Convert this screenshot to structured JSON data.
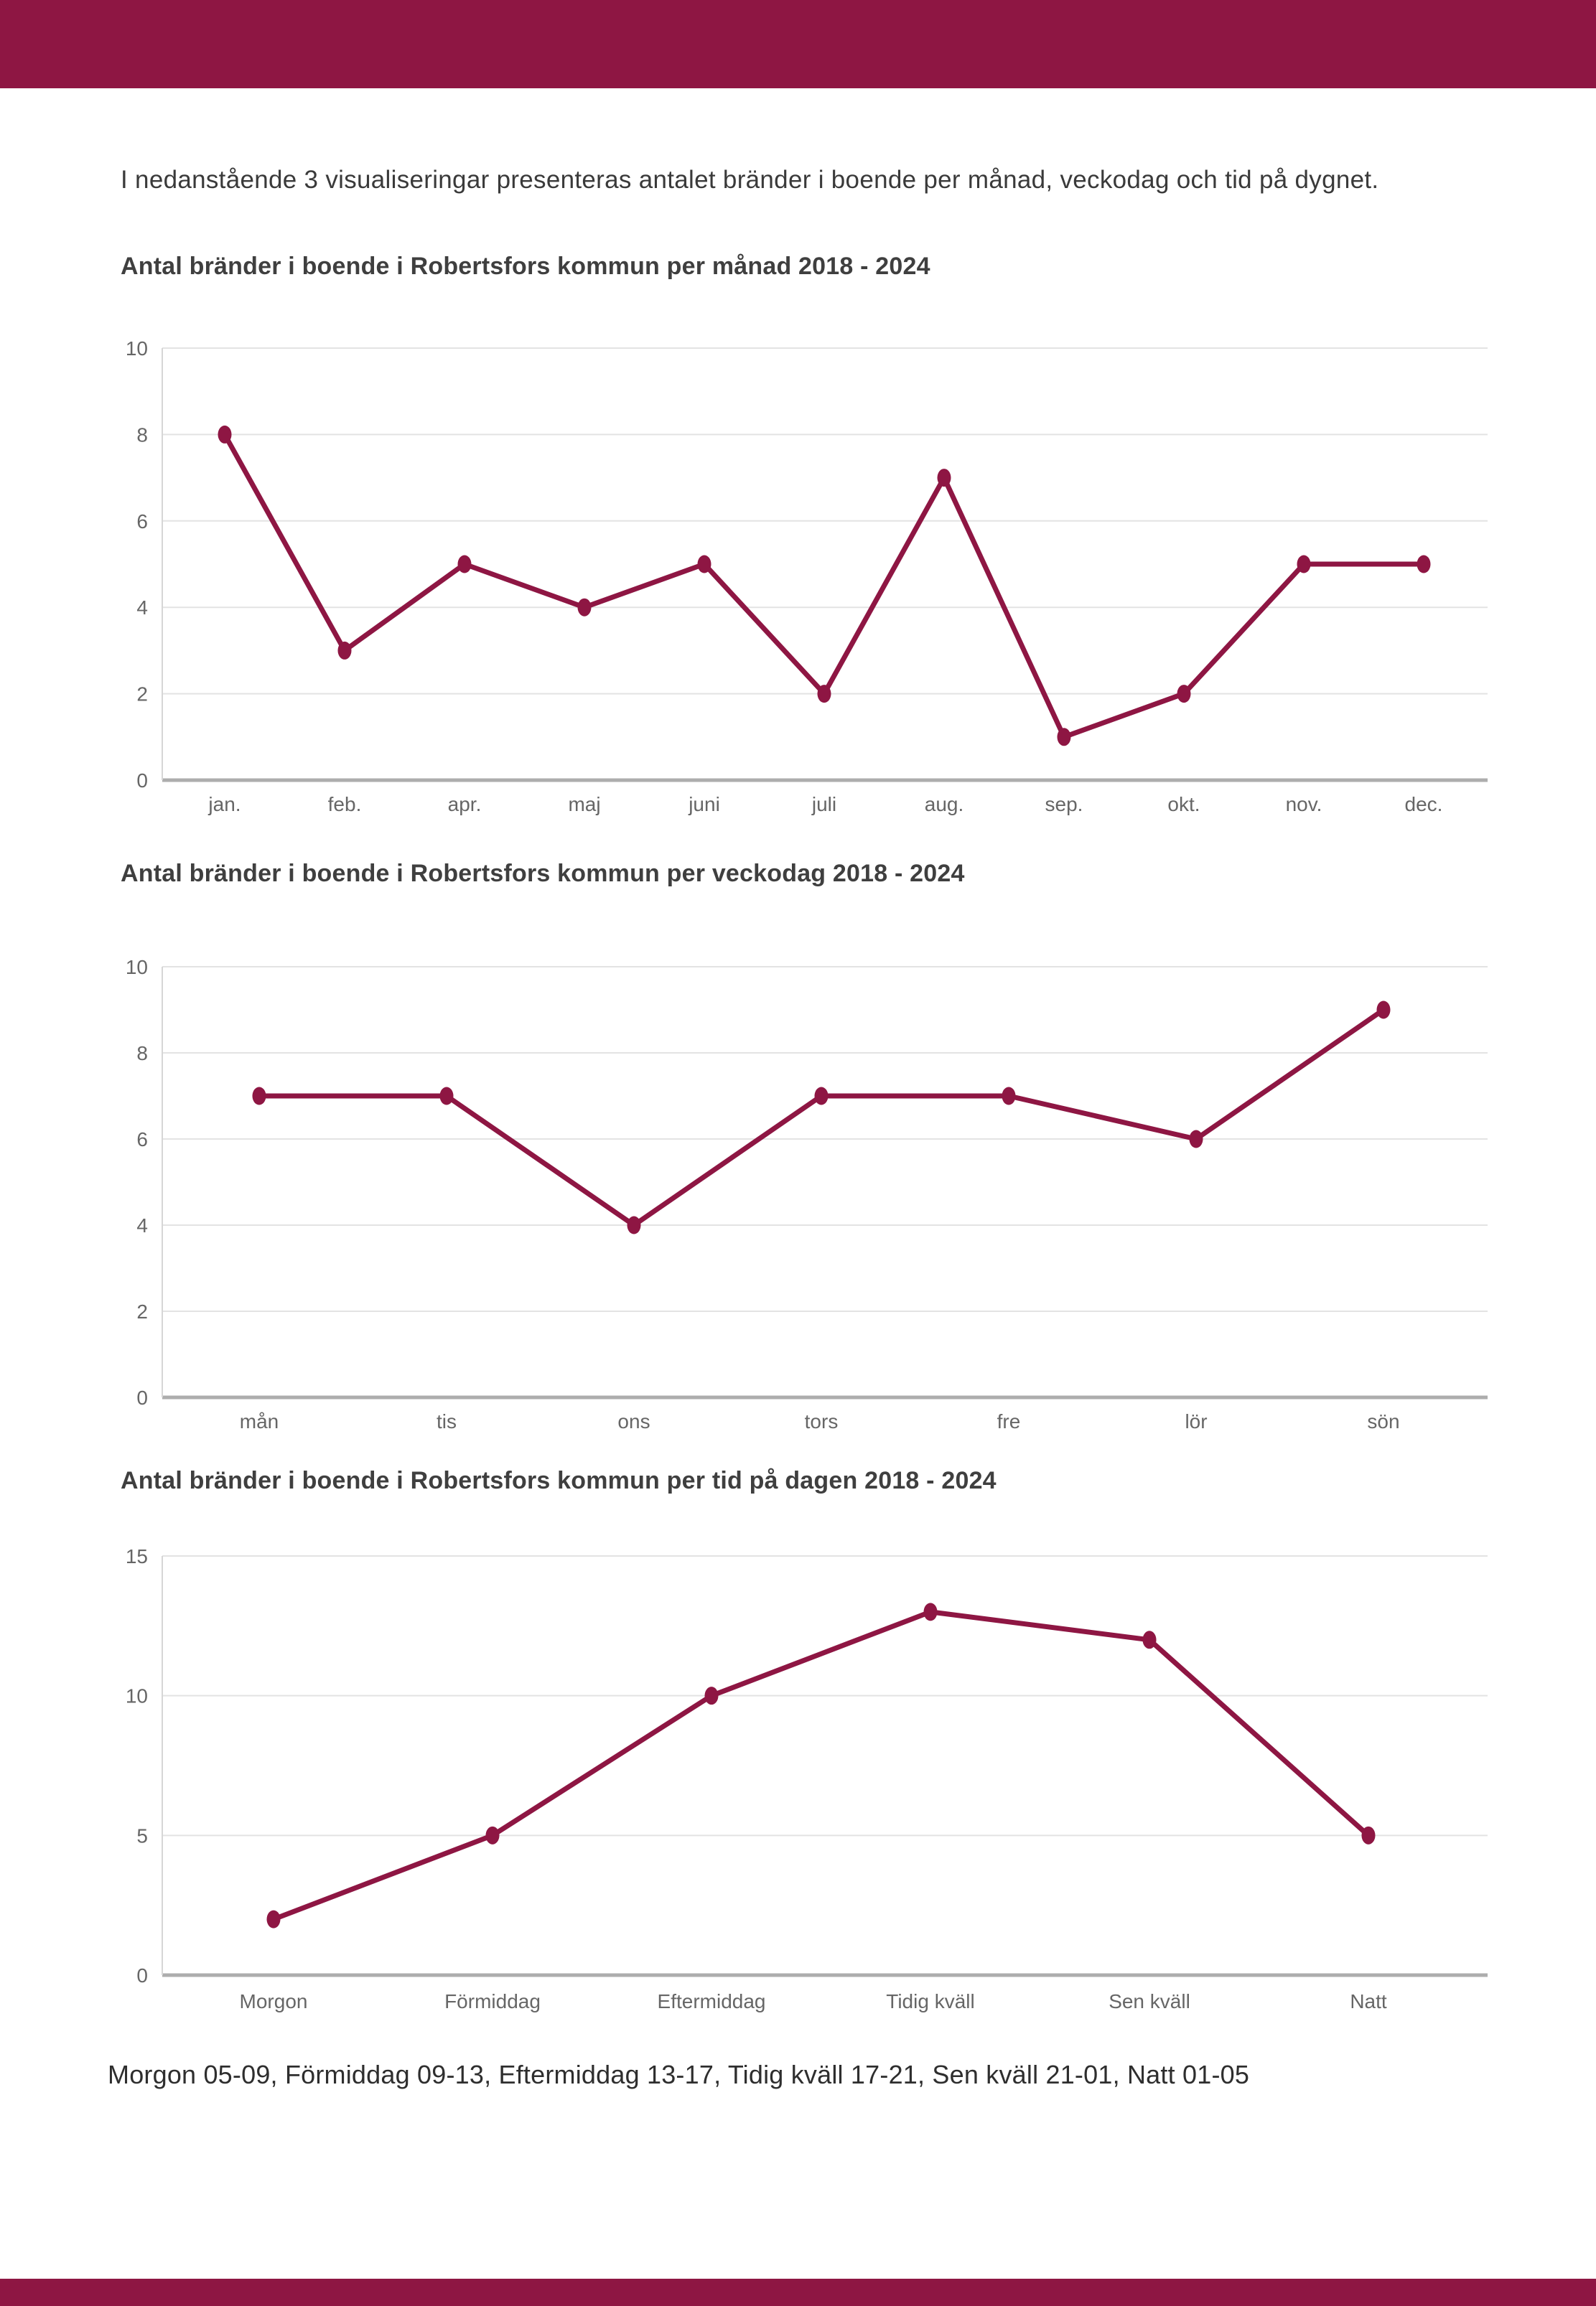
{
  "page": {
    "intro": "I nedanstående 3 visualiseringar presenteras antalet bränder i boende per månad, veckodag och tid på dygnet.",
    "footer_caption": "Morgon 05-09, Förmiddag 09-13, Eftermiddag 13-17, Tidig kväll 17-21, Sen kväll 21-01, Natt 01-05"
  },
  "theme": {
    "accent": "#8E1643",
    "title_color": "#3F3F3F",
    "text_color": "#3A3A3A",
    "axis_text_color": "#666666",
    "gridline_color": "#E3E3E3",
    "zero_line_color": "#ADADAD",
    "axis_line_color": "#D6D6D6"
  },
  "chart_data": [
    {
      "type": "line",
      "title": "Antal bränder i boende i Robertsfors kommun per månad 2018 - 2024",
      "categories": [
        "jan.",
        "feb.",
        "apr.",
        "maj",
        "juni",
        "juli",
        "aug.",
        "sep.",
        "okt.",
        "nov.",
        "dec."
      ],
      "values": [
        8,
        3,
        5,
        4,
        5,
        2,
        7,
        1,
        2,
        5,
        5
      ],
      "series_name": "Antal bränder per månad",
      "xlabel": "",
      "ylabel": "",
      "ylim": [
        0,
        10
      ],
      "yticks": [
        0,
        2,
        4,
        6,
        8,
        10
      ],
      "grid": true,
      "legend": "none",
      "line_color": "#8E1643"
    },
    {
      "type": "line",
      "title": "Antal bränder i boende i Robertsfors kommun per veckodag 2018 - 2024",
      "categories": [
        "mån",
        "tis",
        "ons",
        "tors",
        "fre",
        "lör",
        "sön"
      ],
      "values": [
        7,
        7,
        4,
        7,
        7,
        6,
        9
      ],
      "series_name": "Antal bränder per veckodag",
      "xlabel": "",
      "ylabel": "",
      "ylim": [
        0,
        10
      ],
      "yticks": [
        0,
        2,
        4,
        6,
        8,
        10
      ],
      "grid": true,
      "legend": "none",
      "line_color": "#8E1643"
    },
    {
      "type": "line",
      "title": "Antal bränder i boende i Robertsfors kommun per tid på dagen 2018 - 2024",
      "categories": [
        "Morgon",
        "Förmiddag",
        "Eftermiddag",
        "Tidig kväll",
        "Sen kväll",
        "Natt"
      ],
      "values": [
        2,
        5,
        10,
        13,
        12,
        5
      ],
      "series_name": "Antal bränder per tid på dagen",
      "xlabel": "",
      "ylabel": "",
      "ylim": [
        0,
        15
      ],
      "yticks": [
        0,
        5,
        10,
        15
      ],
      "grid": true,
      "legend": "none",
      "line_color": "#8E1643"
    }
  ]
}
